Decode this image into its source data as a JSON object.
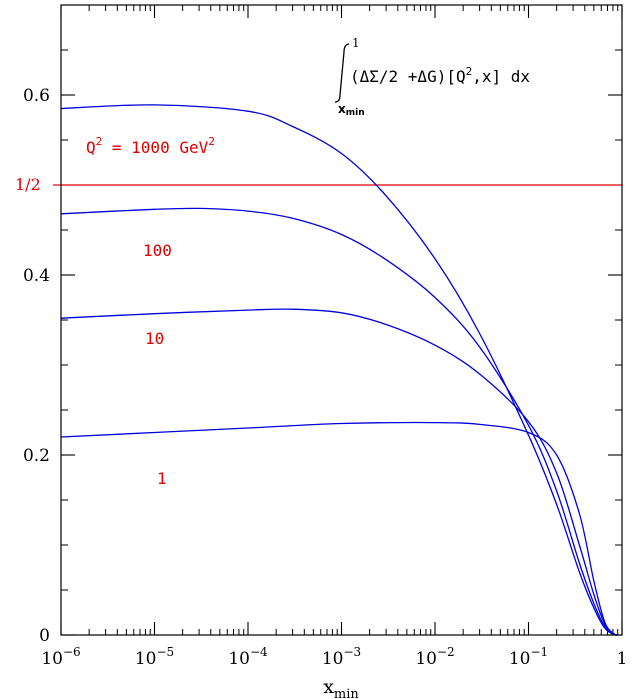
{
  "chart_data": {
    "type": "line",
    "xscale": "log",
    "xlim": [
      1e-06,
      1
    ],
    "ylim": [
      0,
      0.7
    ],
    "xlabel": "x_min",
    "ylabel": "",
    "grid": false,
    "x_ticks": [
      {
        "value": 1e-06,
        "base": "10",
        "exp": "−6"
      },
      {
        "value": 1e-05,
        "base": "10",
        "exp": "−5"
      },
      {
        "value": 0.0001,
        "base": "10",
        "exp": "−4"
      },
      {
        "value": 0.001,
        "base": "10",
        "exp": "−3"
      },
      {
        "value": 0.01,
        "base": "10",
        "exp": "−2"
      },
      {
        "value": 0.1,
        "base": "10",
        "exp": "−1"
      },
      {
        "value": 1,
        "base": "1",
        "exp": ""
      }
    ],
    "y_ticks": [
      {
        "value": 0,
        "label": "0"
      },
      {
        "value": 0.2,
        "label": "0.2"
      },
      {
        "value": 0.4,
        "label": "0.4"
      },
      {
        "value": 0.6,
        "label": "0.6"
      }
    ],
    "formula": {
      "upper_limit": "1",
      "lower_limit": "x",
      "lower_limit_sub": "min",
      "integrand": "(ΔΣ/2 +ΔG)[Q",
      "integrand_sup": "2",
      "integrand_tail": ",x]  dx"
    },
    "reference_line": {
      "y": 0.5,
      "label": "1/2",
      "color": "#e00000"
    },
    "series_color": "#0000dd",
    "series": [
      {
        "name": "1000",
        "label_parts": [
          "Q",
          "2",
          " = 1000 GeV",
          "2"
        ],
        "x": [
          1e-06,
          1e-05,
          0.0001,
          0.0003,
          0.001,
          0.003,
          0.01,
          0.03,
          0.1,
          0.2,
          0.35,
          0.5,
          0.65,
          0.8,
          0.9
        ],
        "y": [
          0.585,
          0.589,
          0.582,
          0.565,
          0.535,
          0.488,
          0.418,
          0.335,
          0.222,
          0.145,
          0.07,
          0.03,
          0.008,
          0.001,
          0.0
        ]
      },
      {
        "name": "100",
        "label_parts": [
          "100"
        ],
        "x": [
          1e-06,
          1e-05,
          3e-05,
          0.0001,
          0.0003,
          0.001,
          0.003,
          0.01,
          0.03,
          0.1,
          0.2,
          0.35,
          0.5,
          0.65,
          0.8,
          0.9
        ],
        "y": [
          0.468,
          0.473,
          0.474,
          0.471,
          0.463,
          0.445,
          0.417,
          0.375,
          0.32,
          0.233,
          0.16,
          0.08,
          0.035,
          0.01,
          0.001,
          0.0
        ]
      },
      {
        "name": "10",
        "label_parts": [
          "10"
        ],
        "x": [
          1e-06,
          1e-05,
          0.0001,
          0.0003,
          0.001,
          0.003,
          0.01,
          0.03,
          0.1,
          0.2,
          0.35,
          0.5,
          0.65,
          0.8,
          0.9
        ],
        "y": [
          0.352,
          0.357,
          0.361,
          0.362,
          0.358,
          0.345,
          0.322,
          0.29,
          0.237,
          0.18,
          0.1,
          0.045,
          0.013,
          0.002,
          0.0
        ]
      },
      {
        "name": "1",
        "label_parts": [
          "1"
        ],
        "x": [
          1e-06,
          1e-05,
          0.0001,
          0.001,
          0.01,
          0.03,
          0.1,
          0.2,
          0.35,
          0.5,
          0.65,
          0.8,
          0.9
        ],
        "y": [
          0.22,
          0.225,
          0.23,
          0.235,
          0.236,
          0.234,
          0.225,
          0.2,
          0.135,
          0.06,
          0.015,
          0.002,
          0.0
        ]
      }
    ]
  }
}
